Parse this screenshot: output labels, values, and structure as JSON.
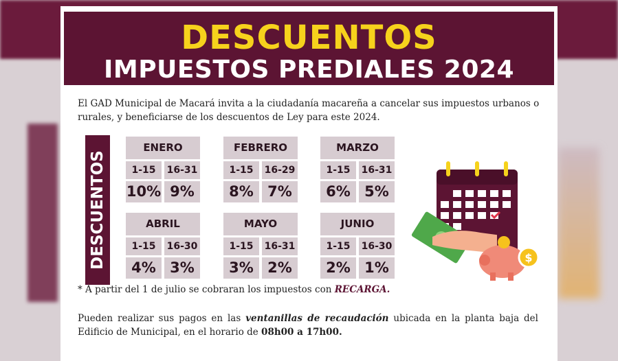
{
  "header": {
    "title": "DESCUENTOS",
    "subtitle": "IMPUESTOS PREDIALES 2024"
  },
  "intro_text": "El GAD Municipal de Macará  invita a la ciudadanía macareña a cancelar sus impuestos urbanos o rurales, y beneficiarse de los descuentos de Ley para este 2024.",
  "side_label": "DESCUENTOS",
  "months": [
    {
      "name": "ENERO",
      "ranges": [
        "1-15",
        "16-31"
      ],
      "discounts": [
        "10%",
        "9%"
      ]
    },
    {
      "name": "FEBRERO",
      "ranges": [
        "1-15",
        "16-29"
      ],
      "discounts": [
        "8%",
        "7%"
      ]
    },
    {
      "name": "MARZO",
      "ranges": [
        "1-15",
        "16-31"
      ],
      "discounts": [
        "6%",
        "5%"
      ]
    },
    {
      "name": "ABRIL",
      "ranges": [
        "1-15",
        "16-30"
      ],
      "discounts": [
        "4%",
        "3%"
      ]
    },
    {
      "name": "MAYO",
      "ranges": [
        "1-15",
        "16-31"
      ],
      "discounts": [
        "3%",
        "2%"
      ]
    },
    {
      "name": "JUNIO",
      "ranges": [
        "1-15",
        "16-30"
      ],
      "discounts": [
        "2%",
        "1%"
      ]
    }
  ],
  "note": {
    "text": "* A partir del 1 de julio se cobraran los impuestos con ",
    "emphasis": "RECARGA."
  },
  "payment": {
    "part1": "Pueden realizar sus pagos en las ",
    "emphasis": "ventanillas de recaudación",
    "part2": " ubicada en la planta baja del Edificio de Municipal, en el horario de ",
    "hours": "08h00 a 17h00."
  },
  "colors": {
    "primary": "#5c1433",
    "accent": "#f6d21c",
    "cell": "#d7ccd1"
  },
  "illustration_icons": [
    "calendar-icon",
    "money-bill-icon",
    "piggy-bank-icon",
    "coin-icon",
    "hand-icon"
  ]
}
